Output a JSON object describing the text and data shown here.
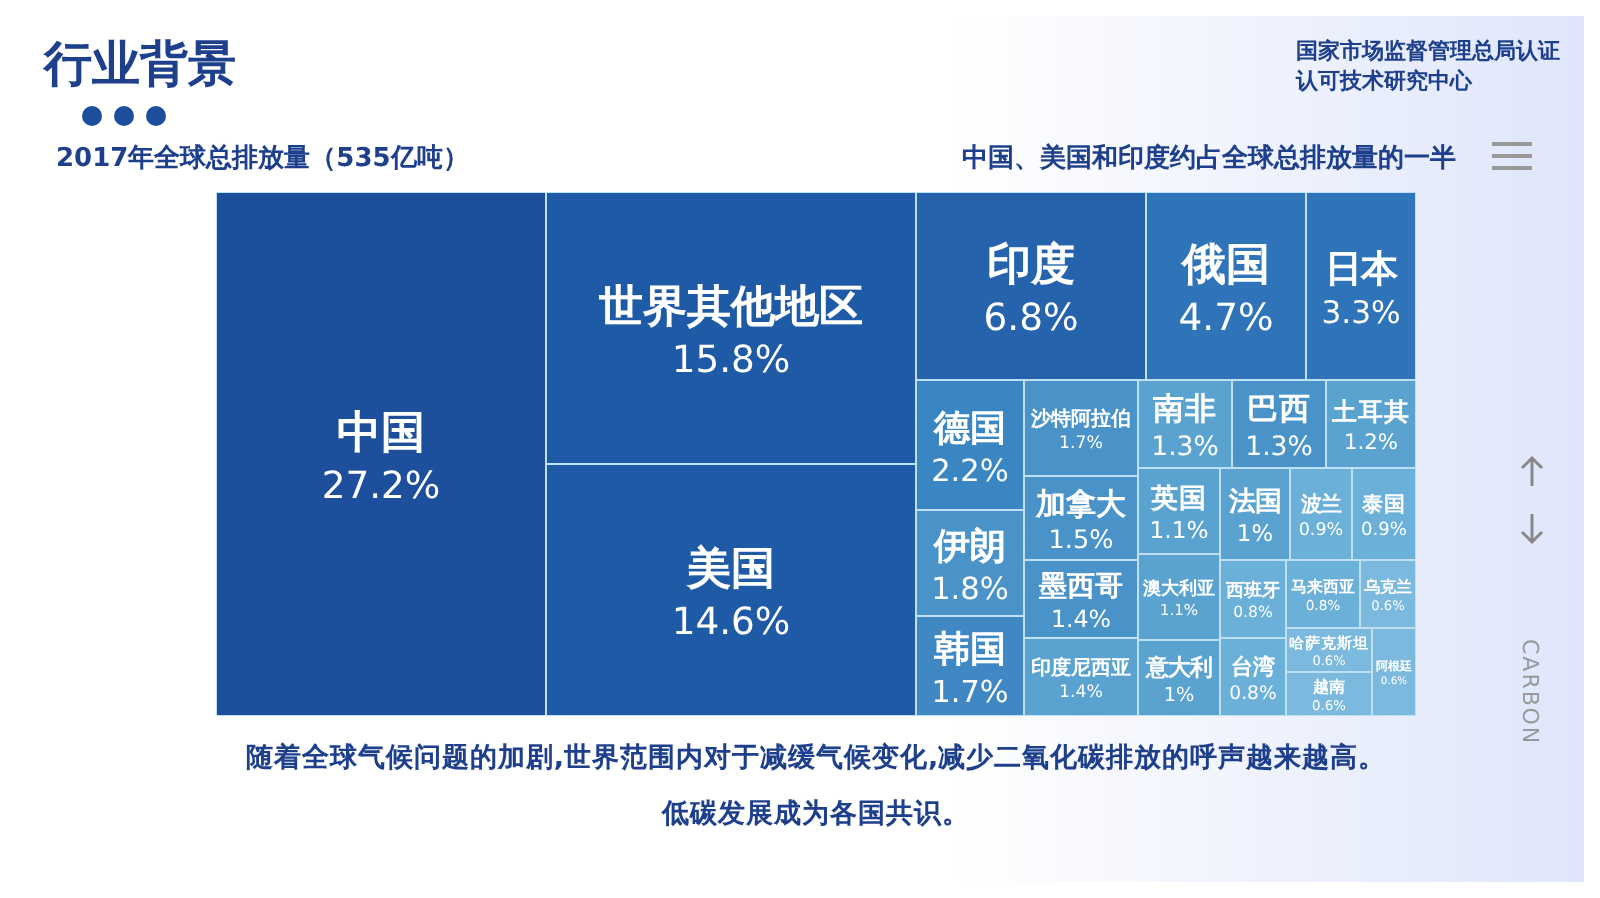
{
  "chart_data": {
    "type": "other",
    "title": "行业背景",
    "subtitle": "2017年全球总排放量（535亿吨）",
    "categories": [
      "中国",
      "世界其他地区",
      "美国",
      "印度",
      "俄国",
      "日本",
      "德国",
      "伊朗",
      "韩国",
      "沙特阿拉伯",
      "加拿大",
      "墨西哥",
      "印度尼西亚",
      "南非",
      "巴西",
      "土耳其",
      "英国",
      "澳大利亚",
      "意大利",
      "法国",
      "波兰",
      "泰国",
      "西班牙",
      "台湾",
      "马来西亚",
      "乌克兰",
      "哈萨克斯坦",
      "越南",
      "阿根廷"
    ],
    "values": [
      27.2,
      15.8,
      14.6,
      6.8,
      4.7,
      3.3,
      2.2,
      1.8,
      1.7,
      1.7,
      1.5,
      1.4,
      1.4,
      1.3,
      1.3,
      1.2,
      1.1,
      1.1,
      1,
      1,
      0.9,
      0.9,
      0.8,
      0.8,
      0.8,
      0.6,
      0.6,
      0.6,
      0.6
    ],
    "value_labels": [
      "27.2%",
      "15.8%",
      "14.6%",
      "6.8%",
      "4.7%",
      "3.3%",
      "2.2%",
      "1.8%",
      "1.7%",
      "1.7%",
      "1.5%",
      "1.4%",
      "1.4%",
      "1.3%",
      "1.3%",
      "1.2%",
      "1.1%",
      "1.1%",
      "1%",
      "1%",
      "0.9%",
      "0.9%",
      "0.8%",
      "0.8%",
      "0.8%",
      "0.6%",
      "0.6%",
      "0.6%",
      "0.6%"
    ],
    "colors": [
      "#1d4f9c",
      "#1f5aa6",
      "#1f5aa6",
      "#2563ad",
      "#2f74b8",
      "#2f74b8",
      "#3a86c2",
      "#4a93c8",
      "#3f88c4",
      "#4a93c8",
      "#4a93c8",
      "#4a93c8",
      "#5aa2d0",
      "#5aa2d0",
      "#4a93c8",
      "#5aa2d0",
      "#5aa2d0",
      "#5aa2d0",
      "#5aa2d0",
      "#5aa2d0",
      "#6bb0d8",
      "#6bb0d8",
      "#6bb0d8",
      "#6bb0d8",
      "#6bb0d8",
      "#7bbade",
      "#7bbade",
      "#7bbade",
      "#7bbade"
    ],
    "annotations": [
      "中国、美国和印度约占全球总排放量的一半",
      "随着全球气候问题的加剧,世界范围内对于减缓气候变化,减少二氧化碳排放的呼声越来越高。",
      "低碳发展成为各国共识。",
      "国家市场监督管理总局认证认可技术研究中心",
      "CARBON"
    ]
  }
}
